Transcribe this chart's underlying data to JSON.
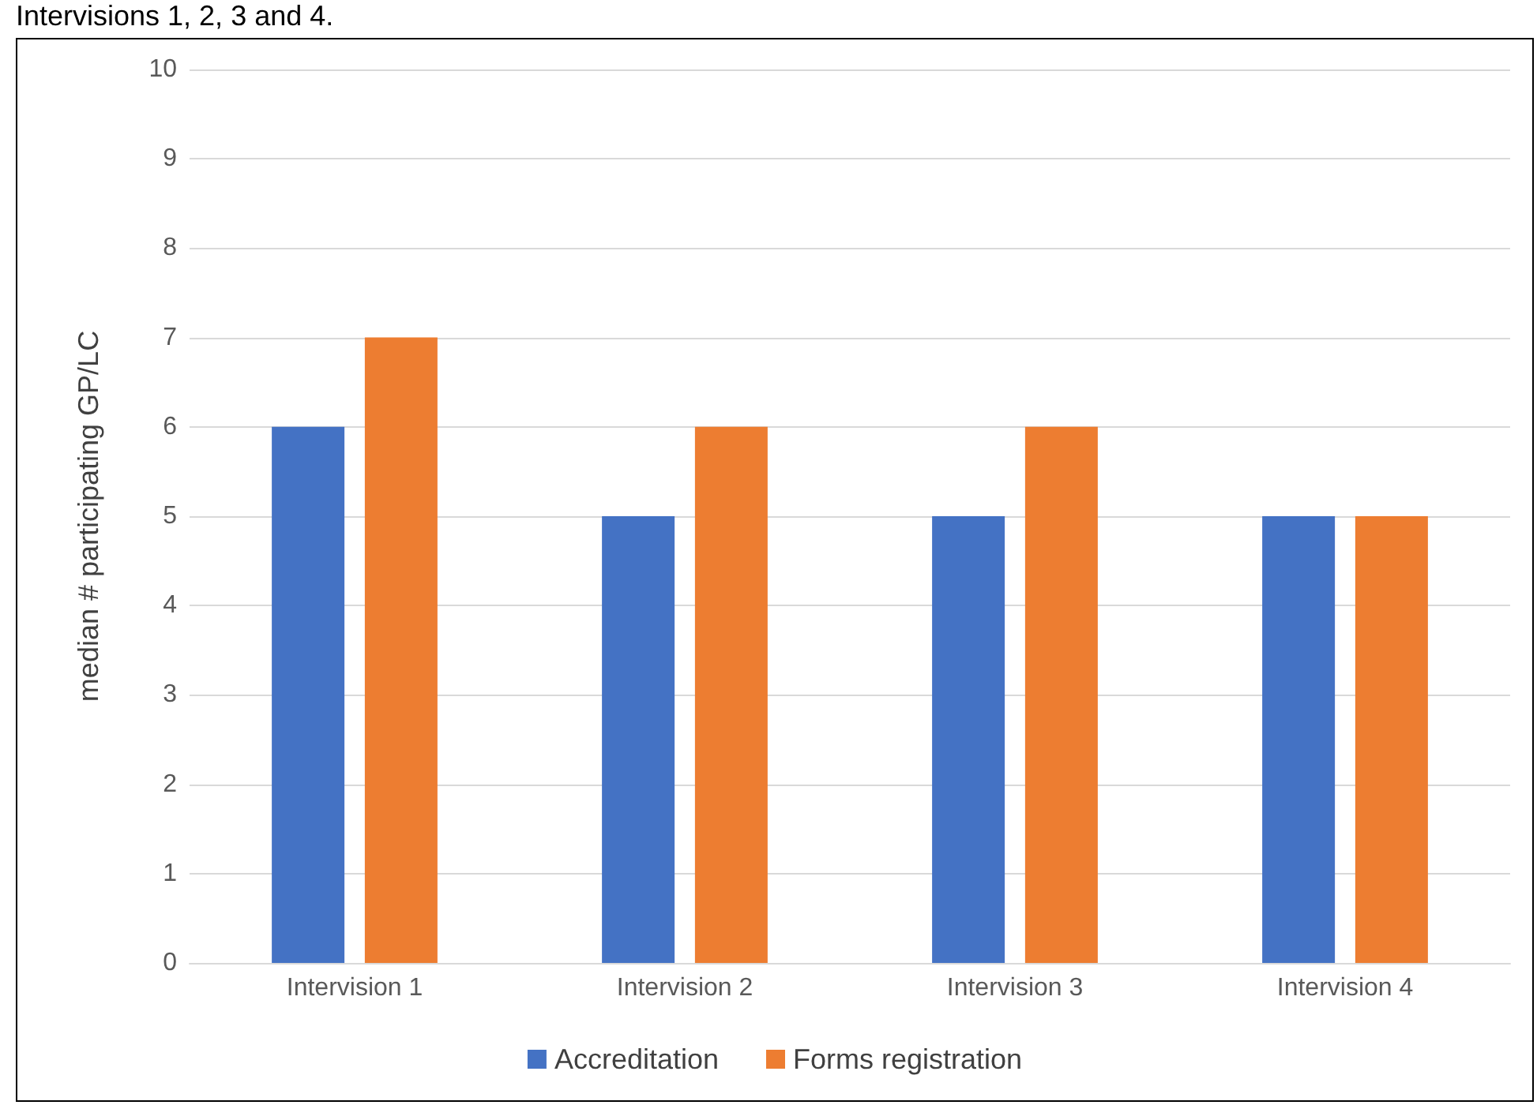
{
  "chart_data": {
    "type": "bar",
    "annotations": [
      "Intervisions 1, 2, 3 and 4."
    ],
    "ylabel": "median # participating GP/LC",
    "categories": [
      "Intervision 1",
      "Intervision 2",
      "Intervision 3",
      "Intervision 4"
    ],
    "series": [
      {
        "name": "Accreditation",
        "color": "#4472c4",
        "values": [
          6,
          5,
          5,
          5
        ]
      },
      {
        "name": "Forms registration",
        "color": "#ed7d31",
        "values": [
          7,
          6,
          6,
          5
        ]
      }
    ],
    "ylim": [
      0,
      10
    ],
    "yticks": [
      0,
      1,
      2,
      3,
      4,
      5,
      6,
      7,
      8,
      9,
      10
    ],
    "grid": "y",
    "legend": "bottom"
  }
}
